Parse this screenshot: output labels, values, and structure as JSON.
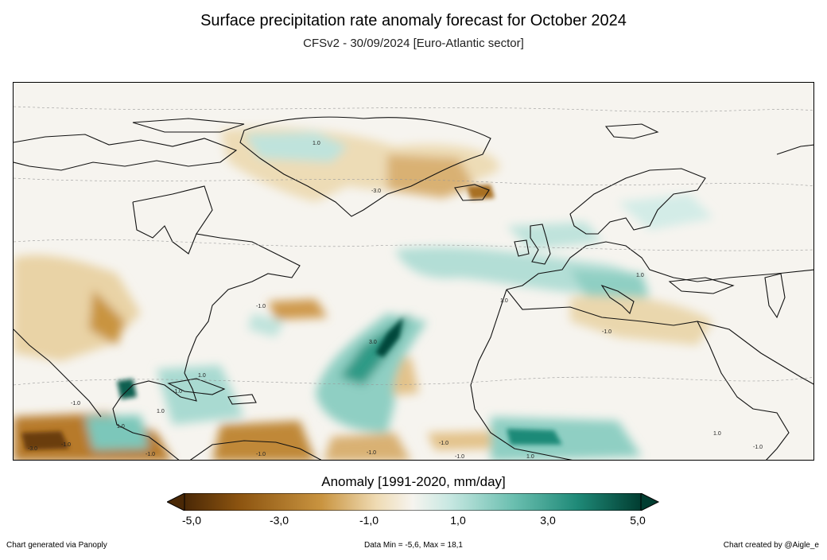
{
  "header": {
    "title": "Surface precipitation rate anomaly forecast for October 2024",
    "subtitle": "CFSv2 - 30/09/2024 [Euro-Atlantic sector]"
  },
  "map": {
    "contour_labels": [
      "1.0",
      "1.0",
      "1.0",
      "-1.0",
      "3.0",
      "-1.0",
      "1.0",
      "1.0",
      "-1.0",
      "1.0",
      "-1.0",
      "-3.0",
      "-1.0",
      "1.0",
      "-1.0",
      "-1.0",
      "-1.0",
      "-1.0",
      "1.0",
      "-1.0",
      "-1.0",
      "-3.0"
    ]
  },
  "colorbar": {
    "title": "Anomaly [1991-2020, mm/day]",
    "tick_labels": [
      "-5,0",
      "-3,0",
      "-1,0",
      "1,0",
      "3,0",
      "5,0"
    ],
    "colors": {
      "dry_extreme": "#4a2806",
      "dry_strong": "#8c5410",
      "dry_mid": "#c99440",
      "dry_light": "#efdbb3",
      "neutral": "#f6f4ef",
      "wet_light": "#c8e8e2",
      "wet_mid": "#6bbfb0",
      "wet_strong": "#1f8a78",
      "wet_extreme": "#013d31"
    }
  },
  "footer": {
    "left": "Chart generated via Panoply",
    "center": "Data Min = -5,6, Max = 18,1",
    "right": "Chart created by @Aigle_e"
  }
}
